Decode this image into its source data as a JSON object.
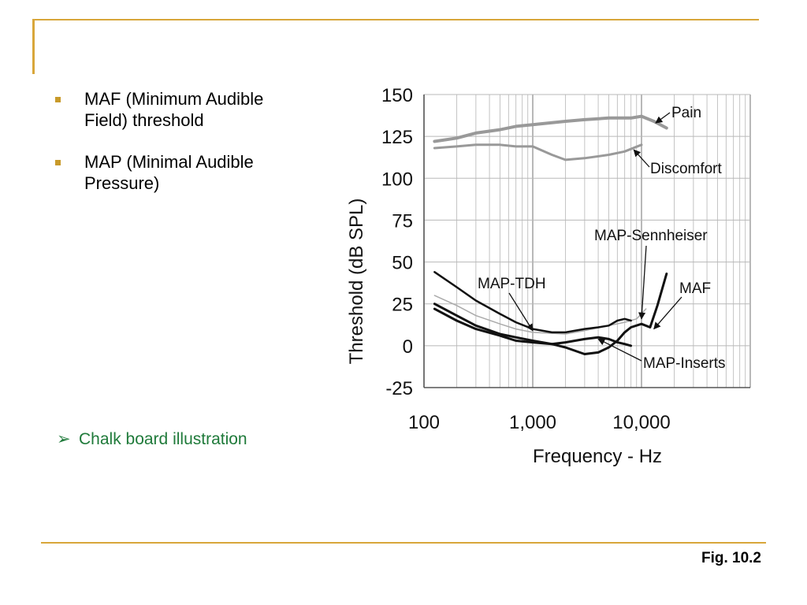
{
  "slide": {
    "bullets": [
      {
        "text": "MAF (Minimum Audible Field) threshold"
      },
      {
        "text": "MAP (Minimal Audible Pressure)"
      }
    ],
    "sub_bullet_symbol": "➢",
    "sub_bullet": "Chalk board illustration",
    "figure_caption": "Fig. 10.2",
    "accent_color": "#d8a63a",
    "sub_bullet_color": "#1f7a3a"
  },
  "chart_data": {
    "type": "line",
    "title": "",
    "xlabel": "Frequency - Hz",
    "ylabel": "Threshold (dB SPL)",
    "x_scale": "log",
    "xlim": [
      100,
      100000
    ],
    "ylim": [
      -25,
      150
    ],
    "x_ticks": [
      100,
      1000,
      10000
    ],
    "x_tick_labels": [
      "100",
      "1,000",
      "10,000"
    ],
    "y_ticks": [
      150,
      125,
      100,
      75,
      50,
      25,
      0,
      -25
    ],
    "grid": true,
    "series": [
      {
        "name": "Pain",
        "color": "#999999",
        "points": [
          [
            125,
            122
          ],
          [
            200,
            124
          ],
          [
            300,
            127
          ],
          [
            500,
            129
          ],
          [
            700,
            131
          ],
          [
            1000,
            132
          ],
          [
            2000,
            134
          ],
          [
            3000,
            135
          ],
          [
            5000,
            136
          ],
          [
            8000,
            136
          ],
          [
            10000,
            137
          ],
          [
            13000,
            134
          ],
          [
            17000,
            130
          ]
        ]
      },
      {
        "name": "Discomfort",
        "color": "#999999",
        "points": [
          [
            125,
            118
          ],
          [
            200,
            119
          ],
          [
            300,
            120
          ],
          [
            500,
            120
          ],
          [
            700,
            119
          ],
          [
            1000,
            119
          ],
          [
            1500,
            114
          ],
          [
            2000,
            111
          ],
          [
            3000,
            112
          ],
          [
            5000,
            114
          ],
          [
            7000,
            116
          ],
          [
            10000,
            120
          ]
        ]
      },
      {
        "name": "MAP-Sennheiser",
        "color": "#aaaaaa",
        "points": [
          [
            125,
            30
          ],
          [
            200,
            24
          ],
          [
            300,
            18
          ],
          [
            500,
            13
          ],
          [
            700,
            10
          ],
          [
            1000,
            8
          ],
          [
            2000,
            7
          ],
          [
            3000,
            9
          ],
          [
            5000,
            12
          ],
          [
            7000,
            14
          ],
          [
            9000,
            16
          ],
          [
            11000,
            22
          ]
        ]
      },
      {
        "name": "MAP-TDH",
        "color": "#111111",
        "points": [
          [
            125,
            44
          ],
          [
            200,
            35
          ],
          [
            300,
            27
          ],
          [
            500,
            19
          ],
          [
            700,
            14
          ],
          [
            1000,
            10
          ],
          [
            1500,
            8
          ],
          [
            2000,
            8
          ],
          [
            3000,
            10
          ],
          [
            4000,
            11
          ],
          [
            5000,
            12
          ],
          [
            6000,
            15
          ],
          [
            7000,
            16
          ],
          [
            8000,
            15
          ]
        ]
      },
      {
        "name": "MAF",
        "color": "#111111",
        "points": [
          [
            125,
            25
          ],
          [
            200,
            18
          ],
          [
            300,
            12
          ],
          [
            500,
            7
          ],
          [
            700,
            5
          ],
          [
            1000,
            3
          ],
          [
            1500,
            1
          ],
          [
            2000,
            -1
          ],
          [
            3000,
            -5
          ],
          [
            4000,
            -4
          ],
          [
            5000,
            -1
          ],
          [
            6000,
            3
          ],
          [
            7000,
            8
          ],
          [
            8000,
            11
          ],
          [
            10000,
            13
          ],
          [
            12000,
            11
          ],
          [
            14000,
            24
          ],
          [
            17000,
            43
          ]
        ]
      },
      {
        "name": "MAP-Inserts",
        "color": "#111111",
        "points": [
          [
            125,
            22
          ],
          [
            200,
            15
          ],
          [
            300,
            10
          ],
          [
            500,
            6
          ],
          [
            700,
            3
          ],
          [
            1000,
            2
          ],
          [
            1500,
            1
          ],
          [
            2000,
            2
          ],
          [
            3000,
            4
          ],
          [
            4000,
            5
          ],
          [
            5000,
            4
          ],
          [
            6000,
            2
          ],
          [
            7000,
            1
          ],
          [
            8000,
            0
          ]
        ]
      }
    ],
    "annotations": [
      {
        "text": "Pain",
        "target": [
          13500,
          133
        ]
      },
      {
        "text": "Discomfort",
        "target": [
          8500,
          117
        ]
      },
      {
        "text": "MAP-Sennheiser",
        "target": [
          10000,
          16
        ]
      },
      {
        "text": "MAP-TDH",
        "target": [
          1000,
          9
        ]
      },
      {
        "text": "MAF",
        "target": [
          13000,
          10
        ]
      },
      {
        "text": "MAP-Inserts",
        "target": [
          4000,
          4
        ]
      }
    ]
  }
}
